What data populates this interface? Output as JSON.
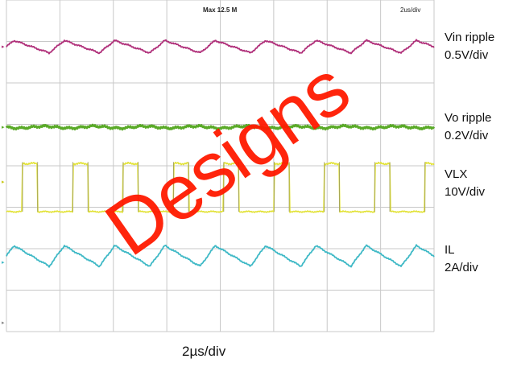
{
  "chart_data": {
    "type": "line",
    "title": "",
    "xlabel": "2µs/div",
    "ylabel": "",
    "header": {
      "trigger": "Max 12.5 M",
      "timebase": "2us/div"
    },
    "grid": true,
    "periods_visible": 8.5,
    "series": [
      {
        "name": "Vin ripple",
        "scale": "0.5V/div",
        "color": "#b0307a",
        "shape": "triangle",
        "ripple_divisions": 0.3
      },
      {
        "name": "Vo ripple",
        "scale": "0.2V/div",
        "color": "#5aaa28",
        "shape": "flat-noise",
        "ripple_divisions": 0.05
      },
      {
        "name": "VLX",
        "scale": "10V/div",
        "color": "#e2e235",
        "shape": "square",
        "duty_cycle": 0.3,
        "amplitude_divisions": 1.2
      },
      {
        "name": "IL",
        "scale": "2A/div",
        "color": "#3fb9c6",
        "shape": "sawtooth",
        "ripple_divisions": 0.5
      }
    ]
  },
  "labels": {
    "vin_name": "Vin ripple",
    "vin_scale": "0.5V/div",
    "vo_name": "Vo ripple",
    "vo_scale": "0.2V/div",
    "vlx_name": "VLX",
    "vlx_scale": "10V/div",
    "il_name": "IL",
    "il_scale": "2A/div",
    "timebase": "2µs/div",
    "header_left": "Max 12.5 M",
    "header_right": "2us/div"
  },
  "watermark": "Designs"
}
